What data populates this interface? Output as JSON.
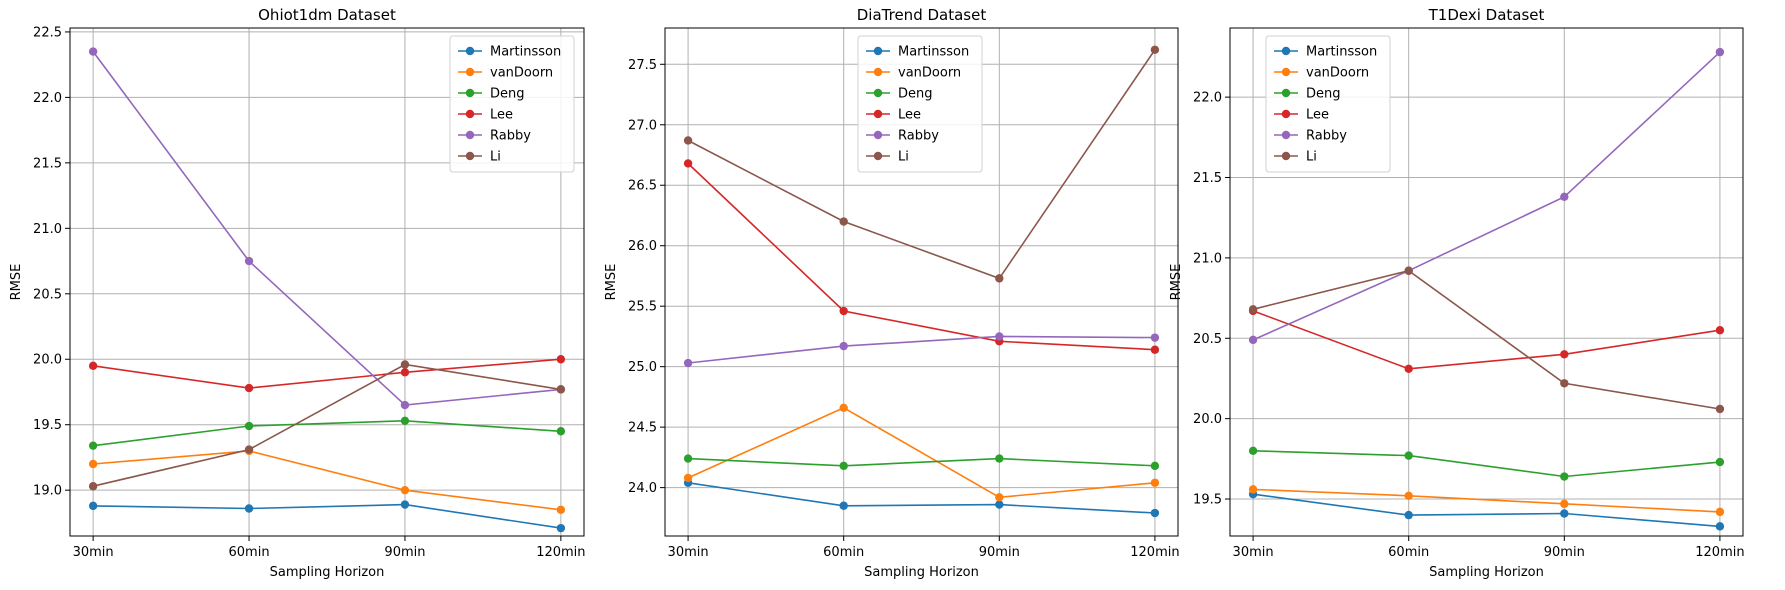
{
  "chart_data": [
    {
      "type": "line",
      "title": "Ohiot1dm Dataset",
      "xlabel": "Sampling Horizon",
      "ylabel": "RMSE",
      "categories": [
        "30min",
        "60min",
        "90min",
        "120min"
      ],
      "ylim": [
        18.65,
        22.53
      ],
      "yticks": [
        "19.0",
        "19.5",
        "20.0",
        "20.5",
        "21.0",
        "21.5",
        "22.0",
        "22.5"
      ],
      "legend_position": "top-right",
      "grid": true,
      "series": [
        {
          "name": "Martinsson",
          "color": "#1f77b4",
          "values": [
            18.88,
            18.86,
            18.89,
            18.71
          ]
        },
        {
          "name": "vanDoorn",
          "color": "#ff7f0e",
          "values": [
            19.2,
            19.3,
            19.0,
            18.85
          ]
        },
        {
          "name": "Deng",
          "color": "#2ca02c",
          "values": [
            19.34,
            19.49,
            19.53,
            19.45
          ]
        },
        {
          "name": "Lee",
          "color": "#d62728",
          "values": [
            19.95,
            19.78,
            19.9,
            20.0
          ]
        },
        {
          "name": "Rabby",
          "color": "#9467bd",
          "values": [
            22.35,
            20.75,
            19.65,
            19.77
          ]
        },
        {
          "name": "Li",
          "color": "#8c564b",
          "values": [
            19.03,
            19.31,
            19.96,
            19.77
          ]
        }
      ]
    },
    {
      "type": "line",
      "title": "DiaTrend Dataset",
      "xlabel": "Sampling Horizon",
      "ylabel": "RMSE",
      "categories": [
        "30min",
        "60min",
        "90min",
        "120min"
      ],
      "ylim": [
        23.6,
        27.8
      ],
      "yticks": [
        "24.0",
        "24.5",
        "25.0",
        "25.5",
        "26.0",
        "26.5",
        "27.0",
        "27.5"
      ],
      "legend_position": "top-center",
      "grid": true,
      "series": [
        {
          "name": "Martinsson",
          "color": "#1f77b4",
          "values": [
            24.04,
            23.85,
            23.86,
            23.79
          ]
        },
        {
          "name": "vanDoorn",
          "color": "#ff7f0e",
          "values": [
            24.08,
            24.66,
            23.92,
            24.04
          ]
        },
        {
          "name": "Deng",
          "color": "#2ca02c",
          "values": [
            24.24,
            24.18,
            24.24,
            24.18
          ]
        },
        {
          "name": "Lee",
          "color": "#d62728",
          "values": [
            26.68,
            25.46,
            25.21,
            25.14
          ]
        },
        {
          "name": "Rabby",
          "color": "#9467bd",
          "values": [
            25.03,
            25.17,
            25.25,
            25.24
          ]
        },
        {
          "name": "Li",
          "color": "#8c564b",
          "values": [
            26.87,
            26.2,
            25.73,
            27.62
          ]
        }
      ]
    },
    {
      "type": "line",
      "title": "T1Dexi Dataset",
      "xlabel": "Sampling Horizon",
      "ylabel": "RMSE",
      "categories": [
        "30min",
        "60min",
        "90min",
        "120min"
      ],
      "ylim": [
        19.27,
        22.43
      ],
      "yticks": [
        "19.5",
        "20.0",
        "20.5",
        "21.0",
        "21.5",
        "22.0"
      ],
      "legend_position": "top-left",
      "grid": true,
      "series": [
        {
          "name": "Martinsson",
          "color": "#1f77b4",
          "values": [
            19.53,
            19.4,
            19.41,
            19.33
          ]
        },
        {
          "name": "vanDoorn",
          "color": "#ff7f0e",
          "values": [
            19.56,
            19.52,
            19.47,
            19.42
          ]
        },
        {
          "name": "Deng",
          "color": "#2ca02c",
          "values": [
            19.8,
            19.77,
            19.64,
            19.73
          ]
        },
        {
          "name": "Lee",
          "color": "#d62728",
          "values": [
            20.67,
            20.31,
            20.4,
            20.55
          ]
        },
        {
          "name": "Rabby",
          "color": "#9467bd",
          "values": [
            20.49,
            20.92,
            21.38,
            22.28
          ]
        },
        {
          "name": "Li",
          "color": "#8c564b",
          "values": [
            20.68,
            20.92,
            20.22,
            20.06
          ]
        }
      ]
    }
  ]
}
